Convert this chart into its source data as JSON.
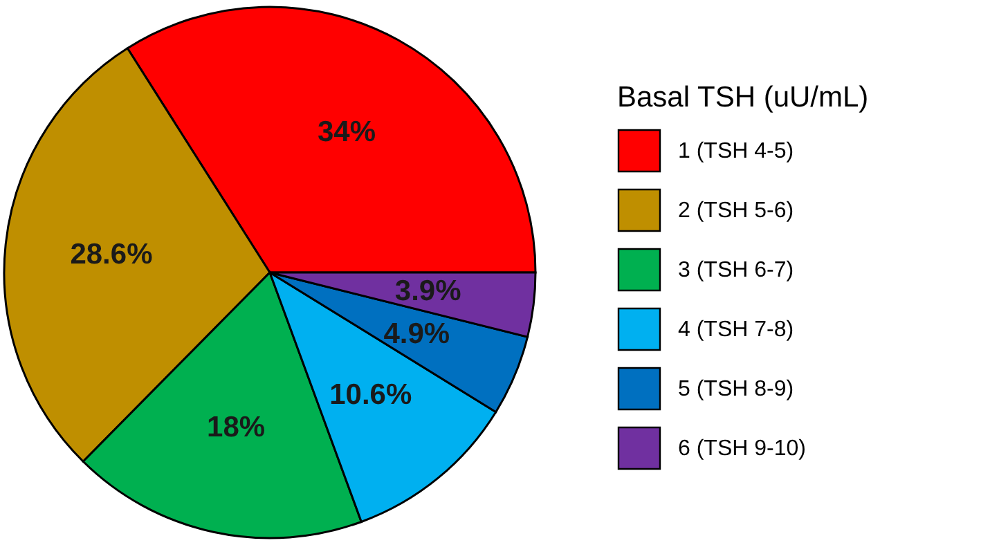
{
  "chart_data": {
    "type": "pie",
    "legend_title": "Basal TSH (uU/mL)",
    "legend": "right",
    "categories": [
      "1 (TSH 4-5)",
      "2 (TSH 5-6)",
      "3 (TSH 6-7)",
      "4 (TSH 7-8)",
      "5 (TSH 8-9)",
      "6 (TSH 9-10)"
    ],
    "values": [
      34,
      28.6,
      18,
      10.6,
      4.9,
      3.9
    ],
    "value_labels": [
      "34%",
      "28.6%",
      "18%",
      "10.6%",
      "4.9%",
      "3.9%"
    ],
    "colors": [
      "#ff0000",
      "#bf8f00",
      "#00b050",
      "#00b0f0",
      "#0070c0",
      "#7030a0"
    ]
  }
}
